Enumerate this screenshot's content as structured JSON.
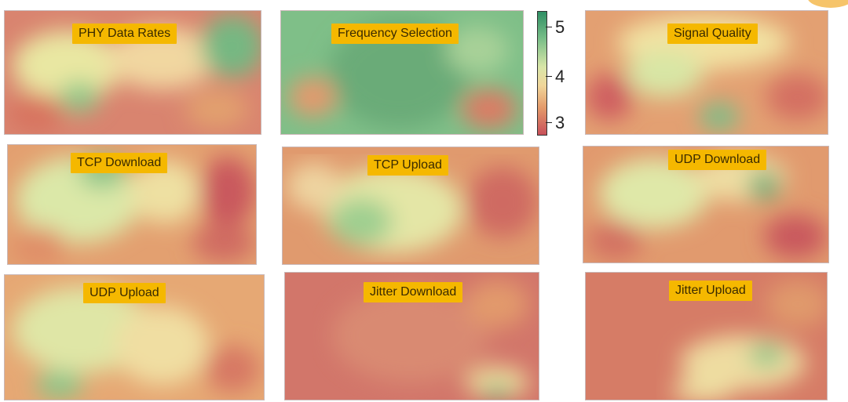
{
  "panels": [
    {
      "label": "PHY Data Rates"
    },
    {
      "label": "Frequency Selection"
    },
    {
      "label": "Signal Quality"
    },
    {
      "label": "TCP Download"
    },
    {
      "label": "TCP Upload"
    },
    {
      "label": "UDP Download"
    },
    {
      "label": "UDP Upload"
    },
    {
      "label": "Jitter Download"
    },
    {
      "label": "Jitter Upload"
    }
  ],
  "colorbar": {
    "ticks": [
      "5",
      "4",
      "3"
    ],
    "colors": {
      "high": "#2f8f64",
      "mid": "#f0e0a0",
      "low": "#c8505a"
    }
  }
}
